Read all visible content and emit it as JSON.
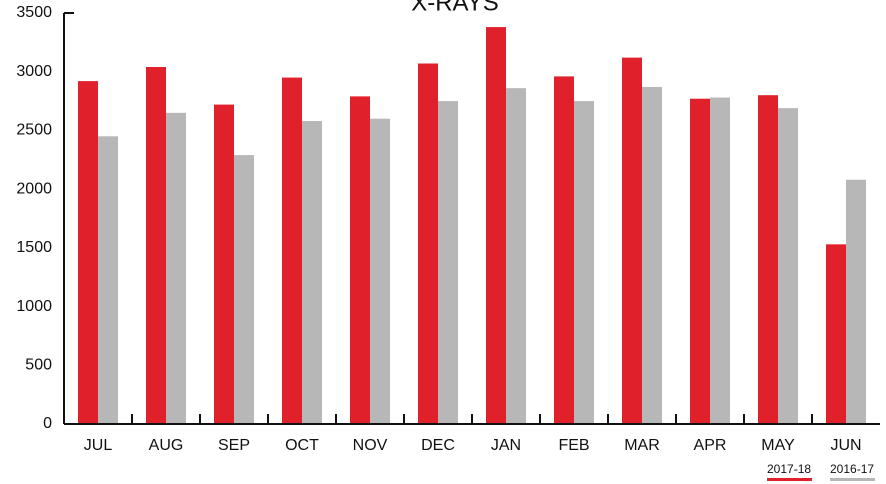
{
  "chart_data": {
    "type": "bar",
    "title": "X-RAYS",
    "categories": [
      "JUL",
      "AUG",
      "SEP",
      "OCT",
      "NOV",
      "DEC",
      "JAN",
      "FEB",
      "MAR",
      "APR",
      "MAY",
      "JUN"
    ],
    "series": [
      {
        "name": "2017-18",
        "color": "#e0202a",
        "values": [
          2920,
          3040,
          2720,
          2950,
          2790,
          3070,
          3380,
          2960,
          3120,
          2770,
          2800,
          1530
        ]
      },
      {
        "name": "2016-17",
        "color": "#b7b7b7",
        "values": [
          2450,
          2650,
          2290,
          2580,
          2600,
          2750,
          2860,
          2750,
          2870,
          2780,
          2690,
          2080
        ]
      }
    ],
    "ylim": [
      0,
      3500
    ],
    "yticks": [
      0,
      500,
      1000,
      1500,
      2000,
      2500,
      3000,
      3500
    ],
    "grid": false
  }
}
